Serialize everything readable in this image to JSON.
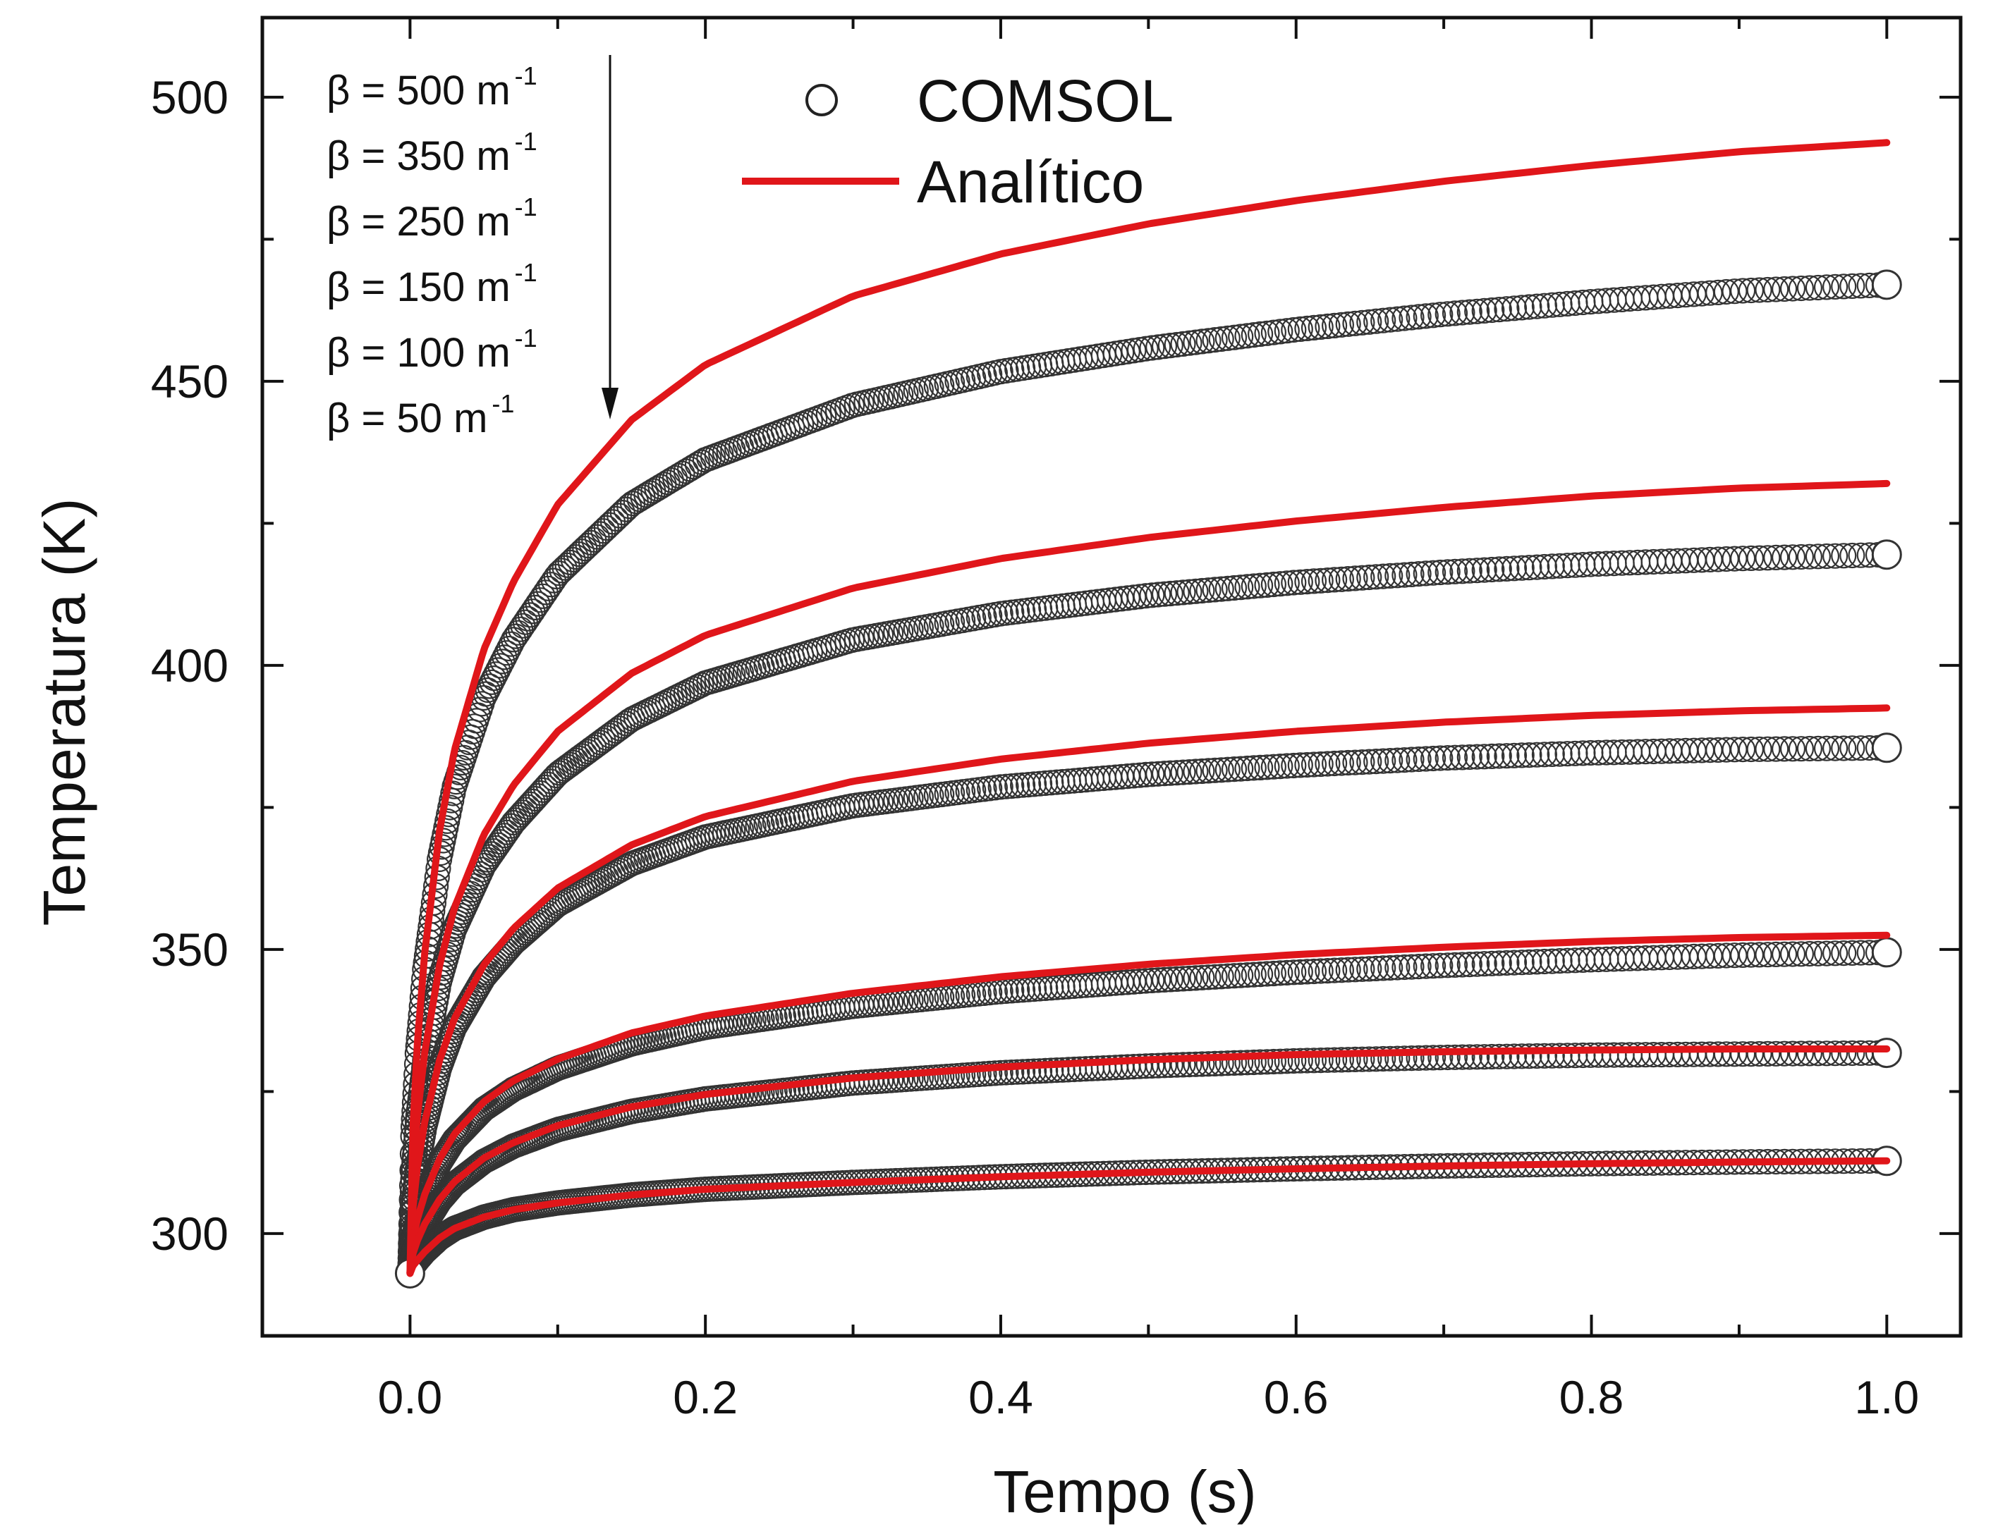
{
  "chart_data": {
    "type": "line",
    "xlabel": "Tempo (s)",
    "ylabel": "Temperatura (K)",
    "xlim": [
      -0.1,
      1.05
    ],
    "ylim": [
      282,
      514
    ],
    "x_ticks": [
      "0.0",
      "0.2",
      "0.4",
      "0.6",
      "0.8",
      "1.0"
    ],
    "y_ticks": [
      "300",
      "350",
      "400",
      "450",
      "500"
    ],
    "grid": false,
    "legend": {
      "placement": "top-center",
      "items": [
        {
          "label": "COMSOL",
          "marker": "open-circle",
          "color": "#222222"
        },
        {
          "label": "Analítico",
          "marker": "line",
          "color": "#e0161a"
        }
      ]
    },
    "annotation": {
      "lines": [
        {
          "prefix": "β = 500 m",
          "sup": "-1"
        },
        {
          "prefix": "β = 350 m",
          "sup": "-1"
        },
        {
          "prefix": "β = 250 m",
          "sup": "-1"
        },
        {
          "prefix": "β = 150 m",
          "sup": "-1"
        },
        {
          "prefix": "β = 100 m",
          "sup": "-1"
        },
        {
          "prefix": "β = 50   m",
          "sup": "-1"
        }
      ],
      "arrow": "down"
    },
    "x": [
      0.0,
      0.002,
      0.005,
      0.01,
      0.02,
      0.03,
      0.05,
      0.07,
      0.1,
      0.15,
      0.2,
      0.3,
      0.4,
      0.5,
      0.6,
      0.7,
      0.8,
      0.9,
      1.0
    ],
    "series": [
      {
        "beta": 500,
        "analitico": [
          293,
          318.7,
          333.6,
          349.5,
          370.9,
          385.0,
          402.8,
          414.7,
          428.3,
          443.2,
          452.9,
          465.0,
          472.4,
          477.7,
          481.8,
          485.2,
          488.0,
          490.4,
          492.0
        ],
        "comsol": [
          293,
          317.8,
          331.8,
          346.5,
          366.0,
          378.6,
          394.3,
          404.5,
          416.0,
          428.4,
          436.2,
          445.8,
          451.7,
          455.8,
          459.1,
          461.8,
          464.0,
          465.9,
          467.0
        ]
      },
      {
        "beta": 350,
        "analitico": [
          293,
          310.4,
          320.8,
          332.0,
          347.2,
          357.3,
          370.2,
          378.9,
          388.4,
          398.6,
          405.3,
          413.6,
          418.8,
          422.5,
          425.4,
          427.8,
          429.8,
          431.2,
          432.0
        ],
        "comsol": [
          293,
          310.0,
          319.9,
          330.4,
          344.4,
          353.5,
          364.8,
          372.3,
          380.9,
          390.5,
          396.9,
          404.5,
          409.1,
          412.3,
          414.6,
          416.4,
          417.8,
          418.8,
          419.5
        ]
      },
      {
        "beta": 250,
        "analitico": [
          293,
          304.6,
          311.8,
          319.7,
          330.5,
          337.8,
          347.3,
          353.7,
          360.8,
          368.4,
          373.4,
          379.6,
          383.5,
          386.3,
          388.4,
          390.0,
          391.2,
          392.0,
          392.5
        ],
        "comsol": [
          293,
          304.3,
          311.3,
          318.9,
          329.2,
          336.2,
          345.1,
          351.1,
          357.9,
          365.1,
          369.8,
          375.3,
          378.6,
          380.8,
          382.4,
          383.7,
          384.6,
          385.2,
          385.5
        ]
      },
      {
        "beta": 150,
        "analitico": [
          293,
          298.9,
          302.6,
          306.9,
          313.1,
          317.5,
          323.2,
          326.9,
          330.7,
          335.3,
          338.3,
          342.3,
          345.2,
          347.4,
          349.1,
          350.4,
          351.4,
          352.1,
          352.5
        ],
        "comsol": [
          293,
          298.7,
          302.3,
          306.5,
          312.4,
          316.5,
          321.9,
          325.4,
          329.1,
          333.4,
          336.3,
          340.0,
          342.6,
          344.5,
          346.0,
          347.2,
          348.2,
          349.0,
          349.5
        ]
      },
      {
        "beta": 100,
        "analitico": [
          293,
          296.5,
          298.8,
          301.7,
          306.0,
          309.1,
          313.3,
          316.0,
          319.0,
          322.3,
          324.5,
          327.4,
          329.3,
          330.6,
          331.5,
          332.0,
          332.3,
          332.5,
          332.5
        ],
        "comsol": [
          293,
          296.5,
          298.7,
          301.5,
          305.7,
          308.7,
          312.7,
          315.4,
          318.3,
          321.5,
          323.7,
          326.5,
          328.3,
          329.5,
          330.4,
          331.0,
          331.4,
          331.6,
          331.8
        ]
      },
      {
        "beta": 50,
        "analitico": [
          293,
          294.3,
          295.3,
          296.8,
          299.2,
          300.9,
          302.9,
          304.2,
          305.4,
          306.8,
          307.8,
          309.0,
          310.0,
          310.8,
          311.4,
          311.9,
          312.3,
          312.6,
          312.8
        ],
        "comsol": [
          293,
          294.3,
          295.3,
          296.8,
          299.2,
          300.9,
          302.9,
          304.2,
          305.4,
          306.8,
          307.8,
          309.0,
          310.0,
          310.8,
          311.4,
          311.9,
          312.3,
          312.6,
          312.8
        ]
      }
    ]
  }
}
